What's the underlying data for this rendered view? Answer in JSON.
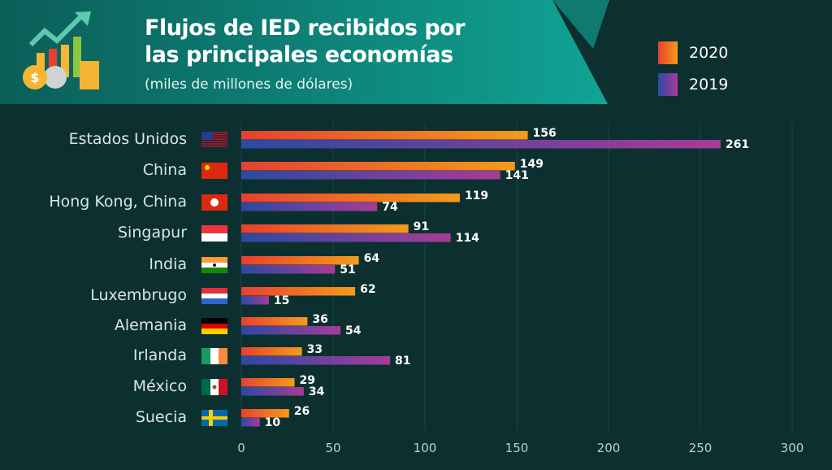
{
  "chart_data": {
    "type": "bar",
    "orientation": "horizontal",
    "title": "Flujos de IED recibidos por las principales economías",
    "title_lines": [
      "Flujos de IED recibidos por",
      "las principales economías"
    ],
    "subtitle": "(miles de millones de dólares)",
    "categories": [
      "Estados Unidos",
      "China",
      "Hong Kong, China",
      "Singapur",
      "India",
      "Luxembrugo",
      "Alemania",
      "Irlanda",
      "México",
      "Suecia"
    ],
    "series": [
      {
        "name": "2020",
        "values": [
          156,
          149,
          119,
          91,
          64,
          62,
          36,
          33,
          29,
          26
        ],
        "color_start": "#e8402f",
        "color_end": "#f49b1b"
      },
      {
        "name": "2019",
        "values": [
          261,
          141,
          74,
          114,
          51,
          15,
          54,
          81,
          34,
          10
        ],
        "color_start": "#2a4aa3",
        "color_end": "#a93a98"
      }
    ],
    "xlim": [
      0,
      300
    ],
    "xticks": [
      "0",
      "50",
      "100",
      "150",
      "200",
      "250",
      "300"
    ],
    "grid": true,
    "legend_position": "top-right",
    "flags": [
      "us-flag-icon",
      "china-flag-icon",
      "hong-kong-flag-icon",
      "singapore-flag-icon",
      "india-flag-icon",
      "netherlands-flag-icon",
      "germany-flag-icon",
      "ireland-flag-icon",
      "mexico-flag-icon",
      "sweden-flag-icon"
    ]
  }
}
